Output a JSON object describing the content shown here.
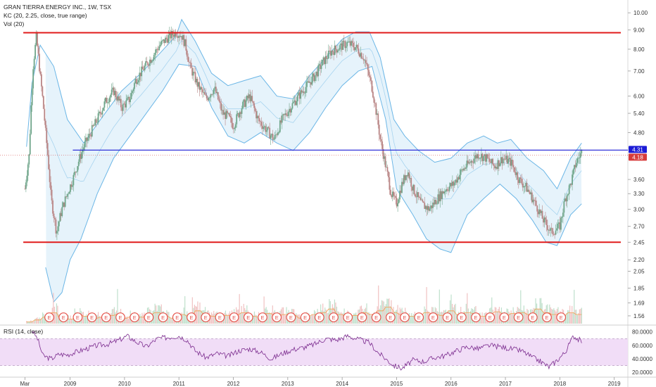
{
  "header": {
    "title_line": "GRAN TIERRA ENERGY INC., 1W, TSX",
    "kc_line": "KC (20, 2.25, close, true range)",
    "vol_line": "Vol (20)",
    "rsi_line": "RSI (14, close)"
  },
  "colors": {
    "candle_up": "#6fa58a",
    "candle_down": "#b98585",
    "kc_band": "#6bb6e6",
    "kc_fill": "#e3f2fb",
    "resistance": "#e01b1b",
    "support": "#e01b1b",
    "level_line": "#1c1cd6",
    "rsi_line": "#7b2b8e",
    "rsi_fill": "#f1ddf7",
    "earnings_badge": "#e5534b"
  },
  "chart_data": {
    "type": "candlestick",
    "title": "GRAN TIERRA ENERGY INC., 1W, TSX",
    "price_axis_ticks": [
      "10.00",
      "9.00",
      "8.00",
      "7.00",
      "6.00",
      "5.40",
      "4.80",
      "4.31",
      "4.18",
      "3.60",
      "3.30",
      "3.00",
      "2.70",
      "2.45",
      "2.20",
      "2.05",
      "1.85",
      "1.69",
      "1.56"
    ],
    "x_axis_ticks": [
      "Mar",
      "2009",
      "2010",
      "2011",
      "2012",
      "2013",
      "2014",
      "2015",
      "2016",
      "2017",
      "2018",
      "2019"
    ],
    "price_labels": [
      {
        "text": "4.31",
        "value": 4.31,
        "color": "#1c1cd6"
      },
      {
        "text": "4.18",
        "value": 4.18,
        "color": "#d63b3b"
      }
    ],
    "horizontal_lines": [
      {
        "name": "resistance",
        "value": 8.85
      },
      {
        "name": "level",
        "value": 4.31
      },
      {
        "name": "support",
        "value": 2.45
      }
    ],
    "close_series": {
      "x": [
        2008.17,
        2008.25,
        2008.32,
        2008.38,
        2008.45,
        2008.55,
        2008.65,
        2008.75,
        2008.85,
        2008.95,
        2009.05,
        2009.15,
        2009.25,
        2009.35,
        2009.5,
        2009.65,
        2009.8,
        2009.95,
        2010.1,
        2010.2,
        2010.35,
        2010.5,
        2010.65,
        2010.8,
        2010.95,
        2011.05,
        2011.12,
        2011.2,
        2011.35,
        2011.5,
        2011.65,
        2011.8,
        2011.9,
        2012.0,
        2012.15,
        2012.3,
        2012.45,
        2012.6,
        2012.75,
        2012.9,
        2013.05,
        2013.2,
        2013.35,
        2013.5,
        2013.65,
        2013.8,
        2013.95,
        2014.1,
        2014.25,
        2014.4,
        2014.55,
        2014.7,
        2014.8,
        2014.9,
        2015.0,
        2015.1,
        2015.2,
        2015.3,
        2015.45,
        2015.6,
        2015.75,
        2015.9,
        2016.05,
        2016.2,
        2016.35,
        2016.5,
        2016.65,
        2016.8,
        2016.95,
        2017.1,
        2017.25,
        2017.4,
        2017.55,
        2017.7,
        2017.85,
        2018.0,
        2018.1,
        2018.2,
        2018.3,
        2018.4
      ],
      "y": [
        3.4,
        4.2,
        7.2,
        8.6,
        6.8,
        4.8,
        3.2,
        2.6,
        3.0,
        3.3,
        3.6,
        4.0,
        4.4,
        4.7,
        5.2,
        5.8,
        6.2,
        5.6,
        5.9,
        6.6,
        7.1,
        7.6,
        8.2,
        8.6,
        8.9,
        8.7,
        8.2,
        7.2,
        6.4,
        5.9,
        6.3,
        5.4,
        5.3,
        5.0,
        5.6,
        6.0,
        5.2,
        4.9,
        4.6,
        5.2,
        5.6,
        6.0,
        6.4,
        6.8,
        7.4,
        7.9,
        8.1,
        8.3,
        8.1,
        7.6,
        6.3,
        4.6,
        3.9,
        3.3,
        3.1,
        3.5,
        3.8,
        3.4,
        3.1,
        3.0,
        3.2,
        3.4,
        3.5,
        3.8,
        4.0,
        4.2,
        4.1,
        3.9,
        4.1,
        4.0,
        3.6,
        3.4,
        3.1,
        2.8,
        2.6,
        2.7,
        3.2,
        3.5,
        4.0,
        4.25
      ]
    },
    "keltner_upper": {
      "x": [
        2008.2,
        2008.3,
        2008.45,
        2008.7,
        2008.95,
        2009.25,
        2009.6,
        2009.95,
        2010.3,
        2010.65,
        2010.95,
        2011.05,
        2011.3,
        2011.6,
        2011.9,
        2012.2,
        2012.5,
        2012.8,
        2013.1,
        2013.4,
        2013.7,
        2014.0,
        2014.25,
        2014.5,
        2014.7,
        2014.95,
        2015.15,
        2015.4,
        2015.7,
        2016.0,
        2016.3,
        2016.6,
        2016.85,
        2017.1,
        2017.4,
        2017.7,
        2017.95,
        2018.2,
        2018.4
      ],
      "y": [
        4.4,
        6.5,
        8.2,
        7.2,
        5.2,
        4.5,
        5.3,
        6.2,
        6.9,
        7.8,
        8.7,
        9.6,
        8.4,
        6.9,
        6.4,
        6.6,
        6.8,
        6.0,
        5.9,
        6.8,
        7.6,
        8.5,
        8.9,
        8.9,
        7.6,
        5.2,
        4.7,
        4.3,
        4.0,
        4.1,
        4.5,
        4.7,
        4.5,
        4.6,
        4.1,
        3.8,
        3.4,
        4.1,
        4.5
      ]
    },
    "keltner_lower": {
      "x": [
        2008.55,
        2008.7,
        2008.85,
        2009.0,
        2009.2,
        2009.5,
        2009.8,
        2010.1,
        2010.4,
        2010.7,
        2011.0,
        2011.3,
        2011.6,
        2011.9,
        2012.2,
        2012.5,
        2012.8,
        2013.1,
        2013.4,
        2013.7,
        2014.0,
        2014.3,
        2014.55,
        2014.8,
        2015.0,
        2015.3,
        2015.55,
        2015.8,
        2016.0,
        2016.3,
        2016.6,
        2016.9,
        2017.2,
        2017.5,
        2017.75,
        2017.95,
        2018.2,
        2018.4
      ],
      "y": [
        2.1,
        1.7,
        1.8,
        2.2,
        2.5,
        3.3,
        4.1,
        4.7,
        5.4,
        6.2,
        7.3,
        7.2,
        5.6,
        4.7,
        4.5,
        4.8,
        4.5,
        4.3,
        4.8,
        5.6,
        6.4,
        7.0,
        7.2,
        5.2,
        3.4,
        2.9,
        2.5,
        2.35,
        2.3,
        2.9,
        3.2,
        3.5,
        3.2,
        2.8,
        2.45,
        2.4,
        2.9,
        3.1
      ]
    },
    "volume_relative": [
      0.1,
      0.2,
      0.35,
      0.6,
      0.3,
      0.25,
      0.5,
      0.4,
      0.3,
      0.35,
      0.45,
      0.5,
      0.3,
      0.4,
      0.35,
      0.5,
      0.6,
      0.4,
      0.3,
      0.5,
      0.4,
      0.7,
      0.5,
      0.4,
      0.35,
      0.45,
      0.5,
      0.6,
      0.4,
      0.35,
      0.55,
      0.4,
      0.5,
      0.45,
      0.3,
      0.4,
      0.5,
      0.6,
      0.8,
      0.5,
      0.4,
      0.45,
      0.6,
      0.5,
      0.7,
      0.9,
      0.6,
      0.5,
      0.4,
      0.35,
      0.6,
      0.5,
      0.45,
      0.7,
      0.5,
      0.6,
      0.55,
      0.4,
      0.5,
      0.65,
      0.45,
      0.55,
      0.6,
      0.5,
      0.8,
      0.6,
      0.5,
      0.45,
      0.6,
      0.5
    ],
    "earnings_count": 37,
    "earnings_label": "E",
    "rsi": {
      "name": "RSI (14, close)",
      "ticks": [
        "80.0000",
        "60.0000",
        "40.0000",
        "20.0000"
      ],
      "ylim": [
        15,
        88
      ],
      "overbought": 70,
      "oversold": 30,
      "x": [
        2008.3,
        2008.4,
        2008.5,
        2008.65,
        2008.8,
        2008.95,
        2009.1,
        2009.3,
        2009.5,
        2009.7,
        2009.9,
        2010.05,
        2010.2,
        2010.4,
        2010.6,
        2010.8,
        2011.0,
        2011.15,
        2011.3,
        2011.5,
        2011.7,
        2011.9,
        2012.1,
        2012.3,
        2012.5,
        2012.7,
        2012.9,
        2013.1,
        2013.3,
        2013.5,
        2013.7,
        2013.9,
        2014.1,
        2014.3,
        2014.5,
        2014.65,
        2014.8,
        2014.95,
        2015.1,
        2015.3,
        2015.5,
        2015.7,
        2015.9,
        2016.1,
        2016.3,
        2016.5,
        2016.7,
        2016.9,
        2017.1,
        2017.3,
        2017.5,
        2017.65,
        2017.8,
        2017.95,
        2018.1,
        2018.25,
        2018.4
      ],
      "y": [
        83,
        70,
        45,
        40,
        47,
        46,
        50,
        55,
        60,
        62,
        68,
        74,
        66,
        58,
        70,
        72,
        74,
        68,
        52,
        42,
        48,
        44,
        52,
        55,
        50,
        40,
        48,
        54,
        57,
        62,
        70,
        68,
        74,
        69,
        64,
        50,
        40,
        30,
        26,
        38,
        36,
        42,
        45,
        52,
        58,
        55,
        60,
        58,
        55,
        52,
        42,
        36,
        28,
        38,
        50,
        74,
        66
      ]
    }
  }
}
